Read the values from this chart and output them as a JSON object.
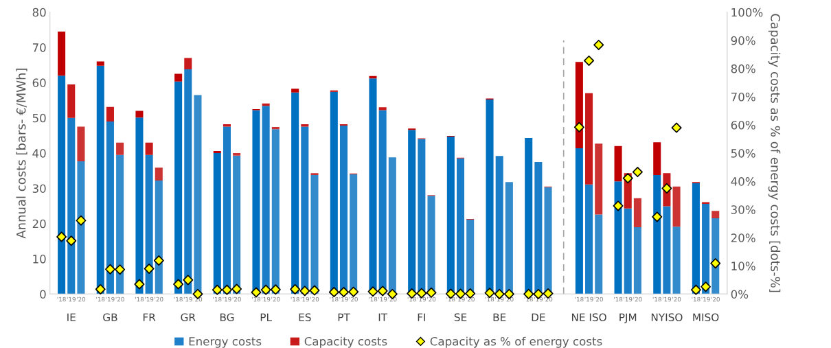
{
  "chart_data": {
    "type": "bar",
    "stacked": true,
    "ylabel": "Annual costs [bars- €/MWh]",
    "y2label": "Capacity costs as % of energy costs [dots-%]",
    "categories": [
      "'18",
      "'19",
      "'20",
      "'18",
      "'19",
      "'20",
      "'18",
      "'19",
      "'20",
      "'18",
      "'19",
      "'20",
      "'18",
      "'19",
      "'20",
      "'18",
      "'19",
      "'20",
      "'18",
      "'19",
      "'20",
      "'18",
      "'19",
      "'20",
      "'18",
      "'19",
      "'20",
      "'18",
      "'19",
      "'20",
      "'18",
      "'19",
      "'20",
      "'18",
      "'19",
      "'20",
      "'18",
      "'19",
      "'20",
      "'18",
      "'19",
      "'20",
      "'18",
      "'19",
      "'20",
      "'18",
      "'19",
      "'20",
      "'18",
      "'19",
      "'20"
    ],
    "annotations": [
      "IE",
      "GB",
      "FR",
      "GR",
      "BG",
      "PL",
      "ES",
      "PT",
      "IT",
      "FI",
      "SE",
      "BE",
      "DE",
      "NE ISO",
      "PJM",
      "NYISO",
      "MISO"
    ],
    "series": [
      {
        "name": "Energy costs",
        "color": "#1f7fc8",
        "colors": [
          "#0070c0",
          "#1a7dc8",
          "#338bcc",
          "#0070c0",
          "#1a7dc8",
          "#338bcc",
          "#0070c0",
          "#1a7dc8",
          "#338bcc",
          "#0070c0",
          "#1a7dc8",
          "#338bcc",
          "#0070c0",
          "#1a7dc8",
          "#338bcc",
          "#0070c0",
          "#1a7dc8",
          "#338bcc",
          "#0070c0",
          "#1a7dc8",
          "#338bcc",
          "#0070c0",
          "#1a7dc8",
          "#338bcc",
          "#0070c0",
          "#1a7dc8",
          "#338bcc",
          "#0070c0",
          "#1a7dc8",
          "#338bcc",
          "#0070c0",
          "#1a7dc8",
          "#338bcc",
          "#0070c0",
          "#1a7dc8",
          "#338bcc",
          "#0070c0",
          "#1a7dc8",
          "#338bcc",
          "#0070c0",
          "#1a7dc8",
          "#338bcc",
          "#0070c0",
          "#1a7dc8",
          "#338bcc",
          "#0070c0",
          "#1a7dc8",
          "#338bcc",
          "#0070c0",
          "#1a7dc8",
          "#338bcc"
        ],
        "values": [
          62,
          50,
          37.7,
          64.8,
          49,
          39.5,
          50.1,
          39.5,
          32.2,
          60.3,
          63.8,
          56.5,
          40,
          47.5,
          39.3,
          52.2,
          53.4,
          46.8,
          57.2,
          47.5,
          33.8,
          57.4,
          47.8,
          34.0,
          61.2,
          52.2,
          38.8,
          46.6,
          44.0,
          27.9,
          44.7,
          38.5,
          21.1,
          55.2,
          39.2,
          31.8,
          44.3,
          37.5,
          30.3,
          41.4,
          31.1,
          22.6,
          32.0,
          24.3,
          19.0,
          33.8,
          24.9,
          19.1,
          31.5,
          25.6,
          21.5
        ]
      },
      {
        "name": "Capacity costs",
        "color": "#c81a1a",
        "colors": [
          "#c00000",
          "#c81a1a",
          "#cc3333",
          "#c00000",
          "#c81a1a",
          "#cc3333",
          "#c00000",
          "#c81a1a",
          "#cc3333",
          "#c00000",
          "#c81a1a",
          "#cc3333",
          "#c00000",
          "#c81a1a",
          "#cc3333",
          "#c00000",
          "#c81a1a",
          "#cc3333",
          "#c00000",
          "#c81a1a",
          "#cc3333",
          "#c00000",
          "#c81a1a",
          "#cc3333",
          "#c00000",
          "#c81a1a",
          "#cc3333",
          "#c00000",
          "#c81a1a",
          "#cc3333",
          "#c00000",
          "#c81a1a",
          "#cc3333",
          "#c00000",
          "#c81a1a",
          "#cc3333",
          "#c00000",
          "#c81a1a",
          "#cc3333",
          "#c00000",
          "#c81a1a",
          "#cc3333",
          "#c00000",
          "#c81a1a",
          "#cc3333",
          "#c00000",
          "#c81a1a",
          "#cc3333",
          "#c00000",
          "#c81a1a",
          "#cc3333"
        ],
        "values": [
          12.5,
          9.5,
          9.8,
          1.2,
          4.1,
          3.5,
          1.9,
          3.5,
          3.7,
          2.2,
          3.2,
          0,
          0.6,
          0.7,
          0.7,
          0.3,
          0.7,
          0.6,
          1.1,
          0.7,
          0.5,
          0.4,
          0.4,
          0.2,
          0.7,
          0.8,
          0,
          0.4,
          0.2,
          0.2,
          0.2,
          0.2,
          0.2,
          0.3,
          0,
          0,
          0,
          0,
          0.2,
          24.5,
          25.9,
          20.1,
          10.0,
          10.0,
          8.2,
          9.3,
          9.4,
          11.4,
          0.3,
          0.5,
          2.1
        ]
      },
      {
        "name": "Capacity as % of energy costs",
        "type": "scatter",
        "axis": "y2",
        "marker": "diamond",
        "color": "#ffff00",
        "values": [
          20.3,
          18.9,
          26.1,
          1.7,
          8.8,
          8.7,
          3.5,
          9.0,
          11.9,
          3.5,
          5.0,
          0,
          1.5,
          1.5,
          1.8,
          0.6,
          1.5,
          1.6,
          1.7,
          1.1,
          1.3,
          0.7,
          0.7,
          0.8,
          0.9,
          1.1,
          0,
          0.2,
          0.3,
          0.5,
          0.1,
          0.1,
          0.2,
          0.4,
          0,
          0,
          0,
          0,
          0.2,
          59.2,
          82.8,
          88.4,
          31.3,
          41.1,
          43.3,
          27.4,
          37.5,
          59.0,
          1.5,
          2.6,
          10.9
        ]
      }
    ],
    "ylim": [
      0,
      80
    ],
    "yticks": [
      0,
      10,
      20,
      30,
      40,
      50,
      60,
      70,
      80
    ],
    "y2lim": [
      0,
      100
    ],
    "y2ticks": [
      {
        "value": 0,
        "label": "0%"
      },
      {
        "value": 10,
        "label": "10%"
      },
      {
        "value": 20,
        "label": "20%"
      },
      {
        "value": 30,
        "label": "30%"
      },
      {
        "value": 40,
        "label": "40%"
      },
      {
        "value": 50,
        "label": "50%"
      },
      {
        "value": 60,
        "label": "60%"
      },
      {
        "value": 70,
        "label": "70%"
      },
      {
        "value": 80,
        "label": "80%"
      },
      {
        "value": 90,
        "label": "90%"
      },
      {
        "value": 100,
        "label": "100%"
      }
    ],
    "grid": false,
    "legend": "bottom"
  }
}
